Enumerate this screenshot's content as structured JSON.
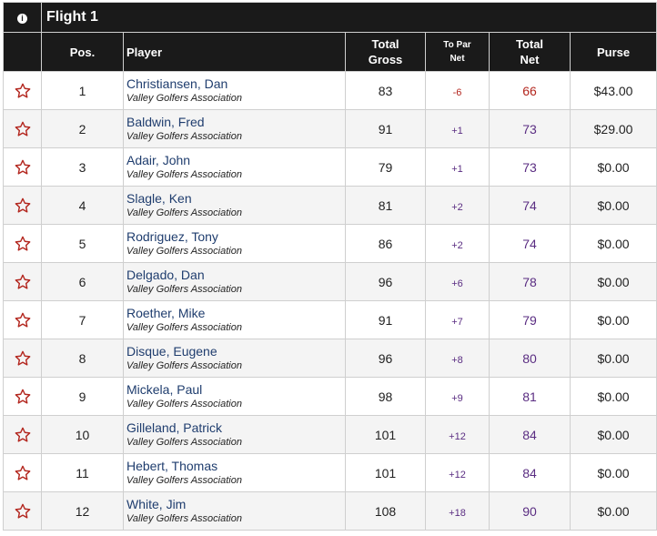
{
  "flight": {
    "title": "Flight 1",
    "info_icon": "info-icon"
  },
  "headers": {
    "pos": "Pos.",
    "player": "Player",
    "total_gross_1": "Total",
    "total_gross_2": "Gross",
    "to_par_1": "To Par",
    "to_par_2": "Net",
    "total_net_1": "Total",
    "total_net_2": "Net",
    "purse": "Purse"
  },
  "icons": {
    "favorite": "star-outline-icon"
  },
  "colors": {
    "header_bg": "#1a1a1a",
    "star": "#b3261e",
    "link": "#1f3d6e",
    "under_par": "#b3261e",
    "over_par": "#5a2d82"
  },
  "rows": [
    {
      "pos": "1",
      "name": "Christiansen, Dan",
      "assoc": "Valley Golfers Association",
      "gross": "83",
      "topar": "-6",
      "net": "66",
      "purse": "$43.00"
    },
    {
      "pos": "2",
      "name": "Baldwin, Fred",
      "assoc": "Valley Golfers Association",
      "gross": "91",
      "topar": "+1",
      "net": "73",
      "purse": "$29.00"
    },
    {
      "pos": "3",
      "name": "Adair, John",
      "assoc": "Valley Golfers Association",
      "gross": "79",
      "topar": "+1",
      "net": "73",
      "purse": "$0.00"
    },
    {
      "pos": "4",
      "name": "Slagle, Ken",
      "assoc": "Valley Golfers Association",
      "gross": "81",
      "topar": "+2",
      "net": "74",
      "purse": "$0.00"
    },
    {
      "pos": "5",
      "name": "Rodriguez, Tony",
      "assoc": "Valley Golfers Association",
      "gross": "86",
      "topar": "+2",
      "net": "74",
      "purse": "$0.00"
    },
    {
      "pos": "6",
      "name": "Delgado, Dan",
      "assoc": "Valley Golfers Association",
      "gross": "96",
      "topar": "+6",
      "net": "78",
      "purse": "$0.00"
    },
    {
      "pos": "7",
      "name": "Roether, Mike",
      "assoc": "Valley Golfers Association",
      "gross": "91",
      "topar": "+7",
      "net": "79",
      "purse": "$0.00"
    },
    {
      "pos": "8",
      "name": "Disque, Eugene",
      "assoc": "Valley Golfers Association",
      "gross": "96",
      "topar": "+8",
      "net": "80",
      "purse": "$0.00"
    },
    {
      "pos": "9",
      "name": "Mickela, Paul",
      "assoc": "Valley Golfers Association",
      "gross": "98",
      "topar": "+9",
      "net": "81",
      "purse": "$0.00"
    },
    {
      "pos": "10",
      "name": "Gilleland, Patrick",
      "assoc": "Valley Golfers Association",
      "gross": "101",
      "topar": "+12",
      "net": "84",
      "purse": "$0.00"
    },
    {
      "pos": "11",
      "name": "Hebert, Thomas",
      "assoc": "Valley Golfers Association",
      "gross": "101",
      "topar": "+12",
      "net": "84",
      "purse": "$0.00"
    },
    {
      "pos": "12",
      "name": "White, Jim",
      "assoc": "Valley Golfers Association",
      "gross": "108",
      "topar": "+18",
      "net": "90",
      "purse": "$0.00"
    }
  ]
}
